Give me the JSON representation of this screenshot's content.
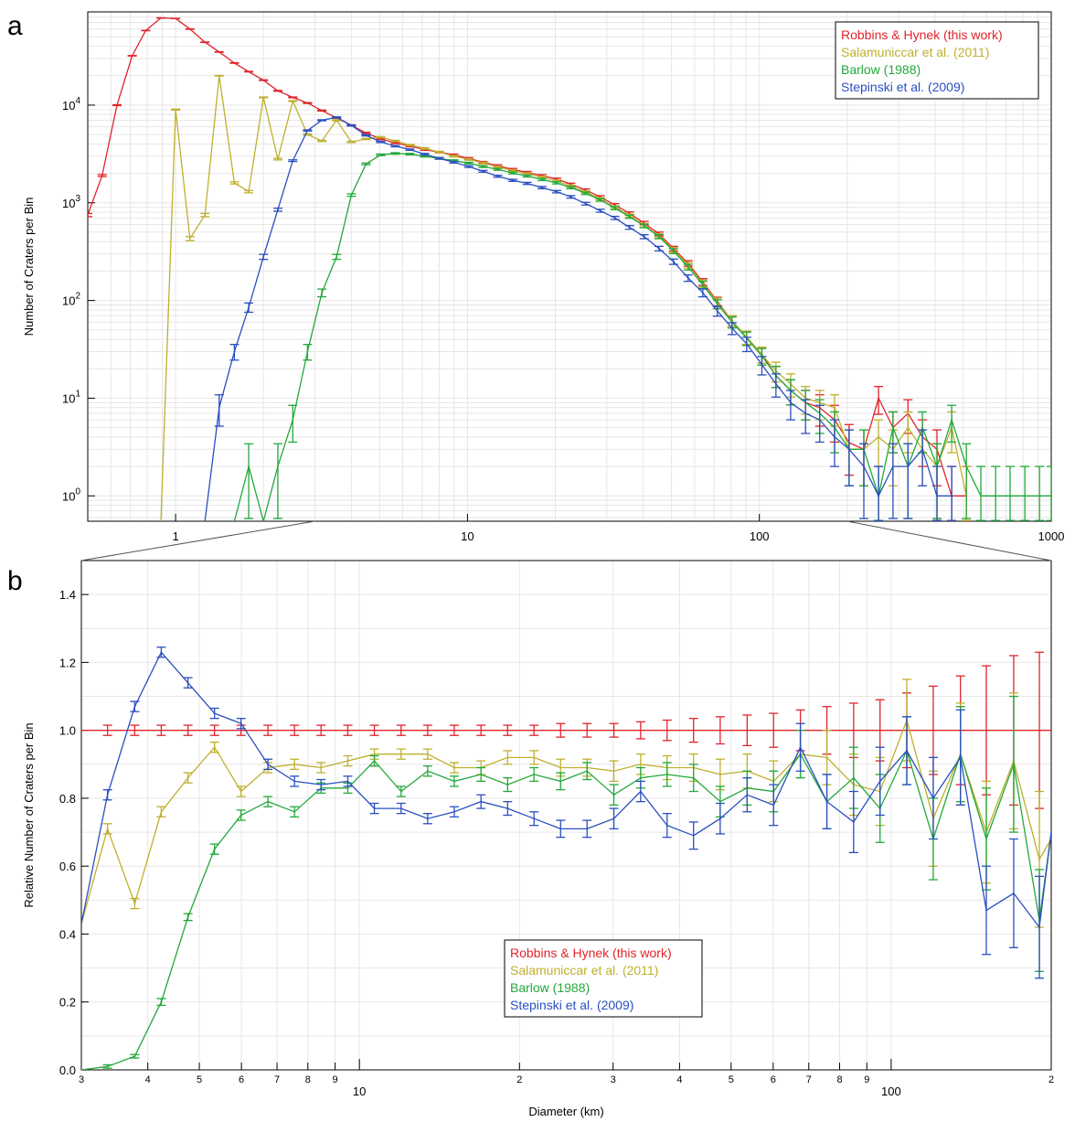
{
  "chart_data": [
    {
      "panel": "a",
      "type": "line",
      "scale": {
        "x": "log",
        "y": "log"
      },
      "xlim": [
        0.5,
        1000
      ],
      "ylim": [
        0.55,
        90000
      ],
      "xlabel": "",
      "ylabel": "Number of Craters per Bin",
      "x_ticks": [
        {
          "v": 1,
          "label": "1"
        },
        {
          "v": 10,
          "label": "10"
        },
        {
          "v": 100,
          "label": "100"
        },
        {
          "v": 1000,
          "label": "1000"
        }
      ],
      "y_ticks": [
        {
          "v": 1,
          "base": "10",
          "exp": "0"
        },
        {
          "v": 10,
          "base": "10",
          "exp": "1"
        },
        {
          "v": 100,
          "base": "10",
          "exp": "2"
        },
        {
          "v": 1000,
          "base": "10",
          "exp": "3"
        },
        {
          "v": 10000,
          "base": "10",
          "exp": "4"
        }
      ],
      "grid": true,
      "legend_position": "top-right",
      "series": [
        {
          "name": "Robbins & Hynek (this work)",
          "color": "#e0242b",
          "x": [
            0.5,
            0.56,
            0.63,
            0.71,
            0.79,
            0.89,
            1.0,
            1.12,
            1.26,
            1.41,
            1.59,
            1.78,
            2.0,
            2.24,
            2.52,
            2.83,
            3.17,
            3.56,
            4.0,
            4.49,
            5.04,
            5.66,
            6.35,
            7.13,
            8.0,
            8.98,
            10.1,
            11.3,
            12.7,
            14.3,
            16.0,
            18.0,
            20.2,
            22.6,
            25.4,
            28.5,
            32.0,
            35.9,
            40.3,
            45.3,
            50.8,
            57.0,
            64.0,
            71.8,
            80.6,
            90.5,
            102,
            114,
            128,
            144,
            161,
            181,
            203,
            228,
            256,
            287,
            323,
            362,
            406,
            456,
            512
          ],
          "values": [
            750,
            1900,
            10000,
            32000,
            58000,
            78000,
            77000,
            60000,
            44000,
            35000,
            27000,
            22000,
            18000,
            14000,
            12000,
            10500,
            8800,
            7400,
            6200,
            5200,
            4500,
            4100,
            3800,
            3500,
            3300,
            3100,
            2850,
            2600,
            2400,
            2200,
            2050,
            1900,
            1750,
            1550,
            1350,
            1150,
            950,
            780,
            620,
            480,
            340,
            240,
            155,
            98,
            62,
            42,
            28,
            17,
            12,
            9,
            8,
            6,
            3.5,
            3,
            10,
            5,
            7,
            4,
            3,
            1,
            1
          ],
          "errors": true
        },
        {
          "name": "Salamuniccar et al. (2011)",
          "color": "#bfb02e",
          "x": [
            0.89,
            1.0,
            1.12,
            1.26,
            1.41,
            1.59,
            1.78,
            2.0,
            2.24,
            2.52,
            2.83,
            3.17,
            3.56,
            4.0,
            4.49,
            5.04,
            5.66,
            6.35,
            7.13,
            8.0,
            8.98,
            10.1,
            11.3,
            12.7,
            14.3,
            16.0,
            18.0,
            20.2,
            22.6,
            25.4,
            28.5,
            32.0,
            35.9,
            40.3,
            45.3,
            50.8,
            57.0,
            64.0,
            71.8,
            80.6,
            90.5,
            102,
            114,
            128,
            144,
            161,
            181,
            203,
            228,
            256,
            287,
            323,
            362,
            406,
            456,
            512
          ],
          "values": [
            0.5,
            9000,
            430,
            750,
            20000,
            1600,
            1300,
            12000,
            2800,
            11000,
            5000,
            4300,
            7000,
            4200,
            4500,
            4700,
            4300,
            3900,
            3600,
            3300,
            3000,
            2780,
            2550,
            2330,
            2140,
            1980,
            1830,
            1680,
            1480,
            1290,
            1100,
            900,
            740,
            590,
            460,
            330,
            230,
            150,
            96,
            62,
            42,
            28,
            19,
            14,
            10,
            9,
            8,
            3,
            3,
            4,
            3,
            5,
            3,
            2,
            5,
            1
          ],
          "errors": true
        },
        {
          "name": "Barlow (1988)",
          "color": "#22a83a",
          "x": [
            1.59,
            1.78,
            2.0,
            2.24,
            2.52,
            2.83,
            3.17,
            3.56,
            4.0,
            4.49,
            5.04,
            5.66,
            6.35,
            7.13,
            8.0,
            8.98,
            10.1,
            11.3,
            12.7,
            14.3,
            16.0,
            18.0,
            20.2,
            22.6,
            25.4,
            28.5,
            32.0,
            35.9,
            40.3,
            45.3,
            50.8,
            57.0,
            64.0,
            71.8,
            80.6,
            90.5,
            102,
            114,
            128,
            144,
            161,
            181,
            203,
            228,
            256,
            287,
            323,
            362,
            406,
            456,
            512,
            574,
            645,
            723,
            812,
            912,
            1000
          ],
          "values": [
            0.5,
            2,
            0.5,
            2,
            6,
            30,
            120,
            280,
            1200,
            2500,
            3100,
            3200,
            3150,
            3000,
            2850,
            2700,
            2550,
            2350,
            2200,
            2020,
            1880,
            1730,
            1600,
            1430,
            1250,
            1070,
            880,
            720,
            580,
            450,
            320,
            220,
            145,
            92,
            60,
            41,
            27,
            17,
            12,
            9,
            7,
            5,
            3,
            3,
            1,
            5,
            2,
            5,
            2,
            6,
            2,
            1,
            1,
            1,
            1,
            1,
            1
          ],
          "errors": true
        },
        {
          "name": "Stepinski et al. (2009)",
          "color": "#2a4fc0",
          "x": [
            1.26,
            1.41,
            1.59,
            1.78,
            2.0,
            2.24,
            2.52,
            2.83,
            3.17,
            3.56,
            4.0,
            4.49,
            5.04,
            5.66,
            6.35,
            7.13,
            8.0,
            8.98,
            10.1,
            11.3,
            12.7,
            14.3,
            16.0,
            18.0,
            20.2,
            22.6,
            25.4,
            28.5,
            32.0,
            35.9,
            40.3,
            45.3,
            50.8,
            57.0,
            64.0,
            71.8,
            80.6,
            90.5,
            102,
            114,
            128,
            144,
            161,
            181,
            203,
            228,
            256,
            287,
            323,
            362,
            406,
            456
          ],
          "values": [
            0.5,
            8,
            30,
            85,
            280,
            850,
            2700,
            5500,
            7000,
            7500,
            6200,
            4900,
            4200,
            3800,
            3500,
            3150,
            2850,
            2600,
            2350,
            2100,
            1870,
            1700,
            1580,
            1430,
            1300,
            1150,
            980,
            830,
            700,
            560,
            450,
            340,
            250,
            170,
            120,
            78,
            52,
            36,
            22,
            14,
            9,
            7,
            6,
            4,
            3,
            2,
            1,
            2,
            2,
            3,
            1,
            1
          ],
          "errors": true
        }
      ]
    },
    {
      "panel": "b",
      "type": "line",
      "scale": {
        "x": "log",
        "y": "linear"
      },
      "xlim": [
        3,
        200
      ],
      "ylim": [
        0,
        1.5
      ],
      "xlabel": "Diameter (km)",
      "ylabel": "Relative Number of Craters per Bin",
      "x_ticks": [
        {
          "v": 3,
          "label": "3"
        },
        {
          "v": 4,
          "label": "4"
        },
        {
          "v": 5,
          "label": "5"
        },
        {
          "v": 6,
          "label": "6"
        },
        {
          "v": 7,
          "label": "7"
        },
        {
          "v": 8,
          "label": "8"
        },
        {
          "v": 9,
          "label": "9"
        },
        {
          "v": 20,
          "label": "2"
        },
        {
          "v": 30,
          "label": "3"
        },
        {
          "v": 40,
          "label": "4"
        },
        {
          "v": 50,
          "label": "5"
        },
        {
          "v": 60,
          "label": "6"
        },
        {
          "v": 70,
          "label": "7"
        },
        {
          "v": 80,
          "label": "8"
        },
        {
          "v": 90,
          "label": "9"
        },
        {
          "v": 200,
          "label": "2"
        }
      ],
      "x_major_ticks": [
        {
          "v": 10,
          "label": "10"
        },
        {
          "v": 100,
          "label": "100"
        }
      ],
      "y_ticks": [
        {
          "v": 0,
          "label": "0.0"
        },
        {
          "v": 0.2,
          "label": "0.2"
        },
        {
          "v": 0.4,
          "label": "0.4"
        },
        {
          "v": 0.6,
          "label": "0.6"
        },
        {
          "v": 0.8,
          "label": "0.8"
        },
        {
          "v": 1.0,
          "label": "1.0"
        },
        {
          "v": 1.2,
          "label": "1.2"
        },
        {
          "v": 1.4,
          "label": "1.4"
        }
      ],
      "grid": true,
      "legend_position": "bottom-center",
      "x": [
        3.0,
        3.36,
        3.78,
        4.24,
        4.76,
        5.34,
        5.99,
        6.73,
        7.55,
        8.47,
        9.51,
        10.67,
        11.98,
        13.44,
        15.08,
        16.93,
        19.0,
        21.3,
        23.9,
        26.8,
        30.1,
        33.8,
        37.9,
        42.5,
        47.7,
        53.6,
        60.1,
        67.5,
        75.7,
        85.0,
        95.3,
        107,
        120,
        135,
        151,
        170,
        190,
        200
      ],
      "series": [
        {
          "name": "Robbins & Hynek (this work)",
          "color": "#e0242b",
          "values": [
            1.0,
            1.0,
            1.0,
            1.0,
            1.0,
            1.0,
            1.0,
            1.0,
            1.0,
            1.0,
            1.0,
            1.0,
            1.0,
            1.0,
            1.0,
            1.0,
            1.0,
            1.0,
            1.0,
            1.0,
            1.0,
            1.0,
            1.0,
            1.0,
            1.0,
            1.0,
            1.0,
            1.0,
            1.0,
            1.0,
            1.0,
            1.0,
            1.0,
            1.0,
            1.0,
            1.0,
            1.0,
            1.0
          ],
          "errors": [
            0.0,
            0.015,
            0.015,
            0.015,
            0.015,
            0.015,
            0.015,
            0.015,
            0.015,
            0.015,
            0.015,
            0.015,
            0.015,
            0.015,
            0.015,
            0.015,
            0.015,
            0.015,
            0.02,
            0.02,
            0.02,
            0.025,
            0.03,
            0.035,
            0.04,
            0.045,
            0.05,
            0.06,
            0.07,
            0.08,
            0.09,
            0.11,
            0.13,
            0.16,
            0.19,
            0.22,
            0.23,
            0.0
          ]
        },
        {
          "name": "Salamuniccar et al. (2011)",
          "color": "#bfb02e",
          "values": [
            0.43,
            0.71,
            0.49,
            0.76,
            0.86,
            0.95,
            0.82,
            0.89,
            0.9,
            0.89,
            0.91,
            0.93,
            0.93,
            0.93,
            0.89,
            0.89,
            0.92,
            0.92,
            0.89,
            0.89,
            0.88,
            0.9,
            0.89,
            0.89,
            0.87,
            0.88,
            0.85,
            0.93,
            0.92,
            0.84,
            0.82,
            1.03,
            0.74,
            0.93,
            0.7,
            0.91,
            0.62,
            0.68
          ],
          "errors": [
            0.0,
            0.015,
            0.015,
            0.015,
            0.015,
            0.015,
            0.015,
            0.015,
            0.015,
            0.015,
            0.015,
            0.015,
            0.015,
            0.015,
            0.015,
            0.02,
            0.02,
            0.02,
            0.025,
            0.025,
            0.03,
            0.03,
            0.035,
            0.04,
            0.045,
            0.05,
            0.06,
            0.07,
            0.08,
            0.09,
            0.1,
            0.12,
            0.14,
            0.15,
            0.15,
            0.2,
            0.2,
            0.0
          ]
        },
        {
          "name": "Barlow (1988)",
          "color": "#22a83a",
          "values": [
            0.0,
            0.01,
            0.04,
            0.2,
            0.45,
            0.65,
            0.75,
            0.79,
            0.76,
            0.83,
            0.83,
            0.91,
            0.82,
            0.88,
            0.85,
            0.87,
            0.84,
            0.87,
            0.85,
            0.88,
            0.81,
            0.86,
            0.87,
            0.86,
            0.79,
            0.83,
            0.82,
            0.93,
            0.79,
            0.86,
            0.77,
            0.94,
            0.68,
            0.93,
            0.68,
            0.9,
            0.44,
            0.7
          ],
          "errors": [
            0.0,
            0.005,
            0.005,
            0.01,
            0.01,
            0.015,
            0.015,
            0.015,
            0.015,
            0.015,
            0.015,
            0.015,
            0.015,
            0.015,
            0.015,
            0.02,
            0.02,
            0.02,
            0.025,
            0.025,
            0.03,
            0.03,
            0.035,
            0.04,
            0.045,
            0.05,
            0.06,
            0.07,
            0.08,
            0.09,
            0.1,
            0.1,
            0.12,
            0.14,
            0.15,
            0.2,
            0.15,
            0.0
          ]
        },
        {
          "name": "Stepinski et al. (2009)",
          "color": "#2a4fc0",
          "values": [
            0.43,
            0.81,
            1.07,
            1.23,
            1.14,
            1.05,
            1.02,
            0.9,
            0.85,
            0.84,
            0.85,
            0.77,
            0.77,
            0.74,
            0.76,
            0.79,
            0.77,
            0.74,
            0.71,
            0.71,
            0.74,
            0.82,
            0.72,
            0.69,
            0.74,
            0.81,
            0.78,
            0.95,
            0.79,
            0.73,
            0.85,
            0.94,
            0.8,
            0.92,
            0.47,
            0.52,
            0.42,
            0.7
          ],
          "errors": [
            0.0,
            0.015,
            0.015,
            0.015,
            0.015,
            0.015,
            0.015,
            0.015,
            0.015,
            0.015,
            0.015,
            0.015,
            0.015,
            0.015,
            0.015,
            0.02,
            0.02,
            0.02,
            0.025,
            0.025,
            0.03,
            0.03,
            0.035,
            0.04,
            0.045,
            0.05,
            0.06,
            0.07,
            0.08,
            0.09,
            0.1,
            0.1,
            0.12,
            0.14,
            0.13,
            0.16,
            0.15,
            0.0
          ]
        }
      ]
    }
  ]
}
